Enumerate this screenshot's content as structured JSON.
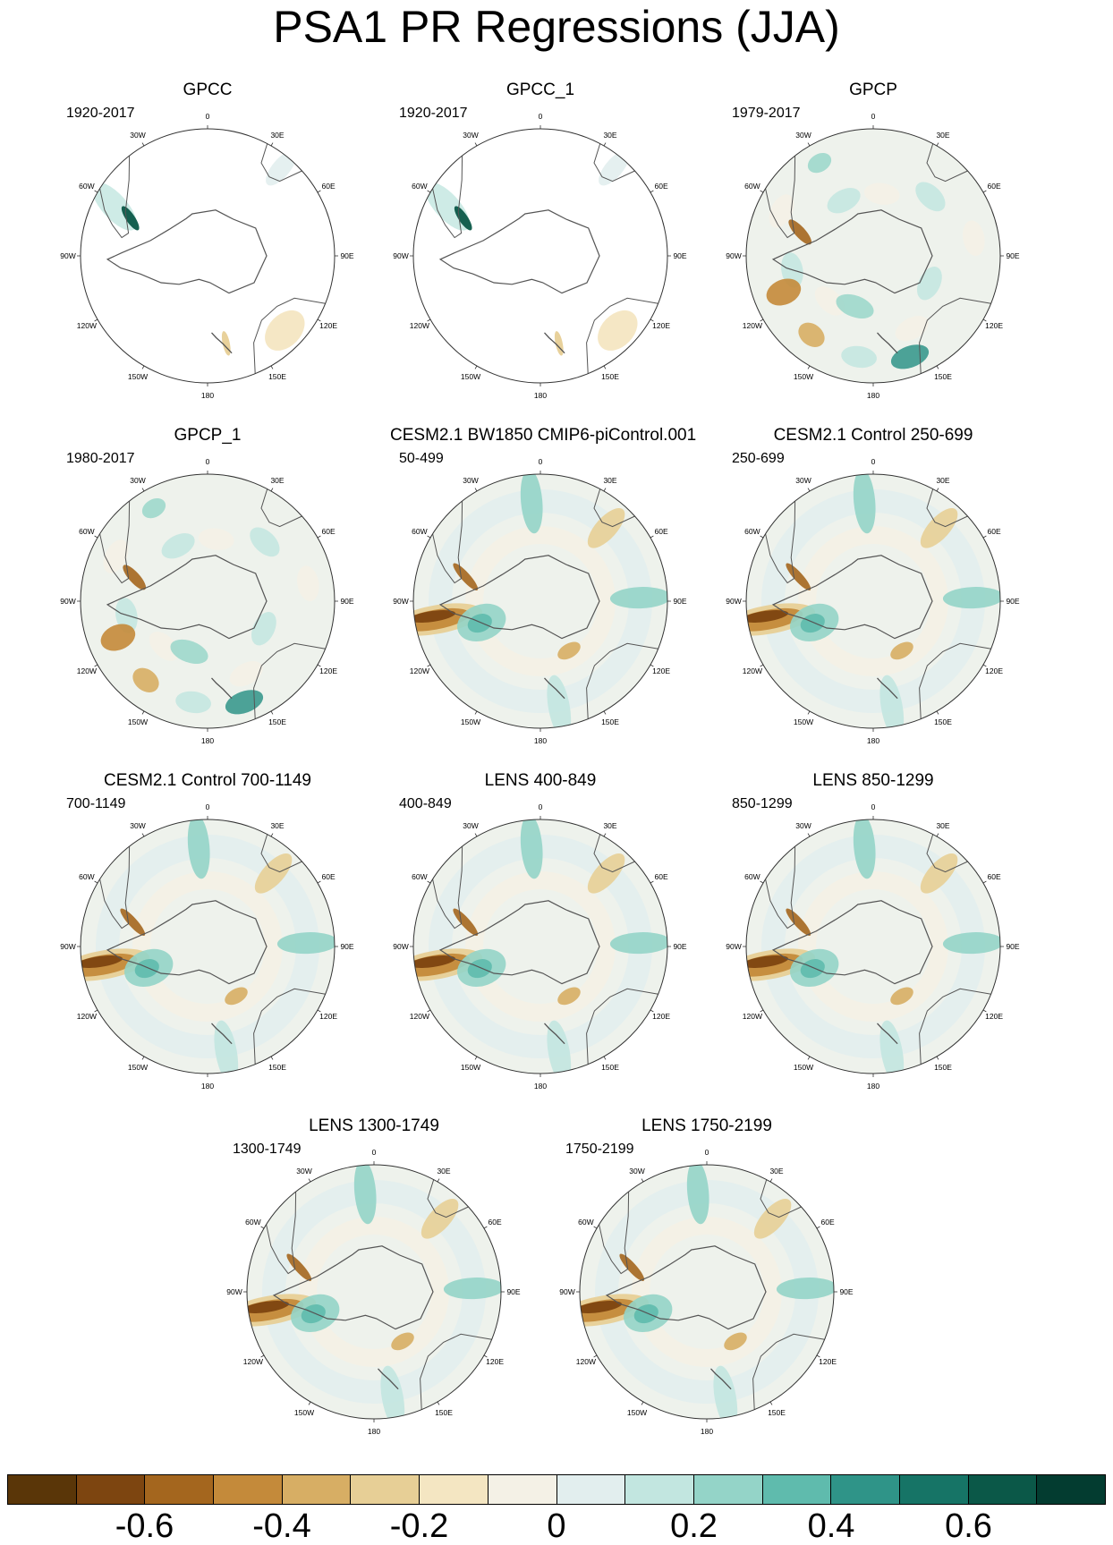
{
  "title": "PSA1 PR Regressions (JJA)",
  "longitude_labels": [
    "0",
    "30E",
    "60E",
    "90E",
    "120E",
    "150E",
    "180",
    "150W",
    "120W",
    "90W",
    "60W",
    "30W"
  ],
  "panels": [
    {
      "title": "GPCC",
      "period": "1920-2017",
      "pattern": "sparse"
    },
    {
      "title": "GPCC_1",
      "period": "1920-2017",
      "pattern": "sparse"
    },
    {
      "title": "GPCP",
      "period": "1979-2017",
      "pattern": "obs"
    },
    {
      "title": "GPCP_1",
      "period": "1980-2017",
      "pattern": "obs"
    },
    {
      "title": "CESM2.1 BW1850 CMIP6-piControl.001",
      "period": "50-499",
      "pattern": "model"
    },
    {
      "title": "CESM2.1 Control 250-699",
      "period": "250-699",
      "pattern": "model"
    },
    {
      "title": "CESM2.1 Control 700-1149",
      "period": "700-1149",
      "pattern": "model"
    },
    {
      "title": "LENS 400-849",
      "period": "400-849",
      "pattern": "model"
    },
    {
      "title": "LENS 850-1299",
      "period": "850-1299",
      "pattern": "model"
    },
    {
      "title": "LENS 1300-1749",
      "period": "1300-1749",
      "pattern": "model"
    },
    {
      "title": "LENS 1750-2199",
      "period": "1750-2199",
      "pattern": "model"
    }
  ],
  "colorbar": {
    "colors": [
      "#5a3608",
      "#7d4510",
      "#a4661e",
      "#c48a3a",
      "#d7ae64",
      "#e7cf96",
      "#f4e6c2",
      "#f4f1e6",
      "#e2eeee",
      "#c2e6e0",
      "#94d4c8",
      "#5fbbad",
      "#2f9488",
      "#167466",
      "#0b5848",
      "#033c30"
    ],
    "tick_labels": [
      "-0.6",
      "-0.4",
      "-0.2",
      "0",
      "0.2",
      "0.4",
      "0.6"
    ],
    "tick_values": [
      -0.6,
      -0.4,
      -0.2,
      0,
      0.2,
      0.4,
      0.6
    ],
    "min": -0.8,
    "max": 0.8
  }
}
